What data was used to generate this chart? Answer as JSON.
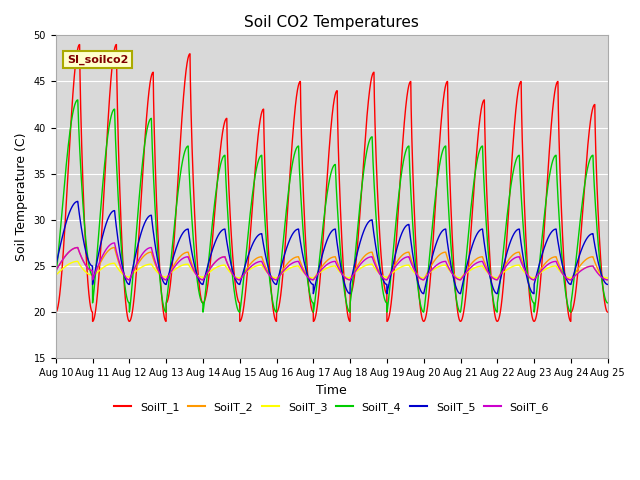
{
  "title": "Soil CO2 Temperatures",
  "xlabel": "Time",
  "ylabel": "Soil Temperature (C)",
  "ylim": [
    15,
    50
  ],
  "ytick_values": [
    15,
    20,
    25,
    30,
    35,
    40,
    45,
    50
  ],
  "xtick_labels": [
    "Aug 10",
    "Aug 11",
    "Aug 12",
    "Aug 13",
    "Aug 14",
    "Aug 15",
    "Aug 16",
    "Aug 17",
    "Aug 18",
    "Aug 19",
    "Aug 20",
    "Aug 21",
    "Aug 22",
    "Aug 23",
    "Aug 24",
    "Aug 25"
  ],
  "series_colors": [
    "#ff0000",
    "#ff9900",
    "#ffff00",
    "#00cc00",
    "#0000cc",
    "#cc00cc"
  ],
  "series_labels": [
    "SoilT_1",
    "SoilT_2",
    "SoilT_3",
    "SoilT_4",
    "SoilT_5",
    "SoilT_6"
  ],
  "annotation_text": "SI_soilco2",
  "bg_color": "#d9d9d9",
  "fig_bg": "#ffffff",
  "grid_color": "#ffffff",
  "title_fontsize": 11,
  "axis_fontsize": 9,
  "tick_fontsize": 7,
  "legend_fontsize": 8
}
